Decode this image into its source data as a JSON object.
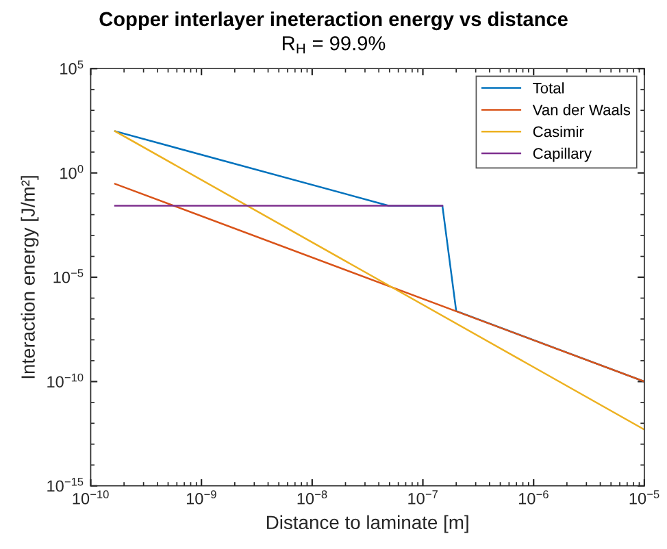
{
  "chart_data": {
    "type": "line",
    "title": "Copper interlayer ineteraction energy vs distance",
    "subtitle": "R$_{H}$ = 99.9%",
    "xlabel": "Distance to laminate [m]",
    "ylabel": "Interaction energy [J/m²]",
    "series": [
      {
        "name": "Total",
        "color": "#0072bd",
        "x": [
          1.66e-10,
          4.9e-08,
          1.5e-07,
          2e-07,
          1e-05
        ],
        "values": [
          100,
          0.027,
          0.027,
          2.4e-07,
          1e-10
        ]
      },
      {
        "name": "Van der Waals",
        "color": "#d95319",
        "x": [
          1.66e-10,
          1e-05
        ],
        "values": [
          0.3,
          1e-10
        ]
      },
      {
        "name": "Casimir",
        "color": "#edb120",
        "x": [
          1.66e-10,
          1e-05
        ],
        "values": [
          100,
          5e-13
        ]
      },
      {
        "name": "Capillary",
        "color": "#7e2f8e",
        "x": [
          1.66e-10,
          1.5e-07
        ],
        "values": [
          0.027,
          0.027
        ]
      }
    ],
    "log": "xy",
    "xlim": [
      1e-10,
      1e-05
    ],
    "ylim": [
      1e-15,
      100000.0
    ],
    "xticks": [
      {
        "value": 1e-10,
        "label": "10$^{−10}$"
      },
      {
        "value": 1e-09,
        "label": "10$^{−9}$"
      },
      {
        "value": 1e-08,
        "label": "10$^{−8}$"
      },
      {
        "value": 1e-07,
        "label": "10$^{−7}$"
      },
      {
        "value": 1e-06,
        "label": "10$^{−6}$"
      },
      {
        "value": 1e-05,
        "label": "10$^{−5}$"
      }
    ],
    "yticks": [
      {
        "value": 1e-15,
        "label": "10$^{−15}$"
      },
      {
        "value": 1e-10,
        "label": "10$^{−10}$"
      },
      {
        "value": 1e-05,
        "label": "10$^{−5}$"
      },
      {
        "value": 1,
        "label": "10$^{0}$"
      },
      {
        "value": 100000.0,
        "label": "10$^{5}$"
      }
    ],
    "grid": false,
    "legend": "top right",
    "line_style": "solid",
    "marker": "none"
  }
}
